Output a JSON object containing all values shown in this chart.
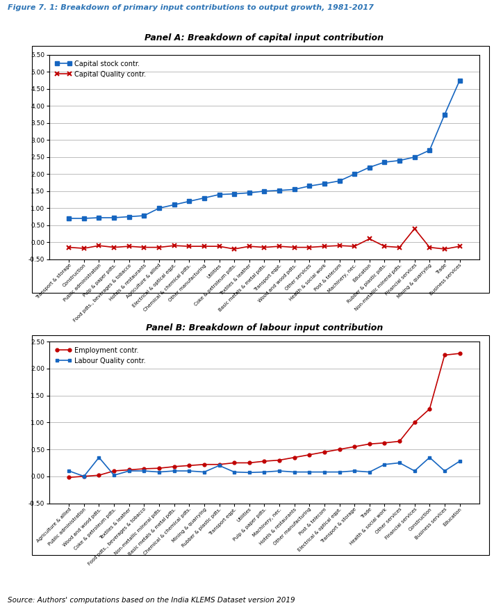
{
  "figure_title": "Figure 7. 1: Breakdown of primary input contributions to output growth, 1981-2017",
  "source_text": "Source: Authors' computations based on the India KLEMS Dataset version 2019",
  "panel_a_title": "Panel A: Breakdown of capital input contribution",
  "panel_b_title": "Panel B: Breakdown of labour input contribution",
  "panel_a_categories": [
    "Transport & storage",
    "Construction",
    "Public administration",
    "Pulp & paper pdts.",
    "Food pdts., beverages & tobacco",
    "Hotels & restaurants",
    "Agriculture & allied",
    "Electrical & optical eqpt.",
    "Chemical & chemical pdts.",
    "Other manufacturing",
    "Utilities",
    "Coke & petroleum pdts.",
    "Textiles & leather",
    "Basic metals & metal pdts.",
    "Transport eqpt.",
    "Wood and wood pdts.",
    "Other services",
    "Health & social work",
    "Post & telecom",
    "Machinery, nec.",
    "Education",
    "Rubber & plastic pdts.",
    "Non-metallic mineral pdts.",
    "Financial services",
    "Mining & quarrying",
    "Trade",
    "Business services"
  ],
  "panel_a_stock": [
    0.7,
    0.7,
    0.72,
    0.72,
    0.75,
    0.78,
    1.0,
    1.1,
    1.2,
    1.3,
    1.4,
    1.42,
    1.45,
    1.5,
    1.52,
    1.55,
    1.65,
    1.72,
    1.8,
    2.0,
    2.2,
    2.35,
    2.4,
    2.5,
    2.7,
    3.75,
    4.75
  ],
  "panel_a_quality": [
    -0.15,
    -0.18,
    -0.1,
    -0.15,
    -0.12,
    -0.15,
    -0.15,
    -0.1,
    -0.12,
    -0.12,
    -0.12,
    -0.2,
    -0.12,
    -0.15,
    -0.12,
    -0.15,
    -0.15,
    -0.12,
    -0.1,
    -0.12,
    0.1,
    -0.12,
    -0.15,
    0.4,
    -0.15,
    -0.2,
    -0.12
  ],
  "panel_b_categories": [
    "Agriculture & allied",
    "Public administration",
    "Wood and wood pdts.",
    "Coke & petroleum pdts.",
    "Textiles & leather",
    "Food pdts., beverages & tobacco",
    "Non-metallic mineral pdts.",
    "Basic metals & metal pdts.",
    "Chemical & chemical pdts.",
    "Mining & quarrying",
    "Rubber & plastic pdts.",
    "Transport eqpt.",
    "Utilities",
    "Pulp & paper pdts.",
    "Machinery, nec.",
    "Hotels & restaurants",
    "Other manufacturing",
    "Post & telecom",
    "Electrical & optical eqpt.",
    "Transport & storage",
    "Trade",
    "Health & social work",
    "Other services",
    "Financial services",
    "Construction",
    "Business services",
    "Education"
  ],
  "panel_b_employment": [
    -0.02,
    0.0,
    0.02,
    0.1,
    0.12,
    0.14,
    0.15,
    0.18,
    0.2,
    0.22,
    0.22,
    0.25,
    0.25,
    0.28,
    0.3,
    0.35,
    0.4,
    0.45,
    0.5,
    0.55,
    0.6,
    0.62,
    0.65,
    1.0,
    1.25,
    2.25,
    2.28
  ],
  "panel_b_quality": [
    0.1,
    0.0,
    0.35,
    0.02,
    0.1,
    0.1,
    0.08,
    0.1,
    0.1,
    0.08,
    0.2,
    0.08,
    0.07,
    0.08,
    0.1,
    0.08,
    0.08,
    0.08,
    0.08,
    0.1,
    0.08,
    0.22,
    0.25,
    0.1,
    0.35,
    0.1,
    0.28
  ],
  "blue_color": "#1565C0",
  "red_color": "#C00000",
  "title_color": "#2E75B6"
}
